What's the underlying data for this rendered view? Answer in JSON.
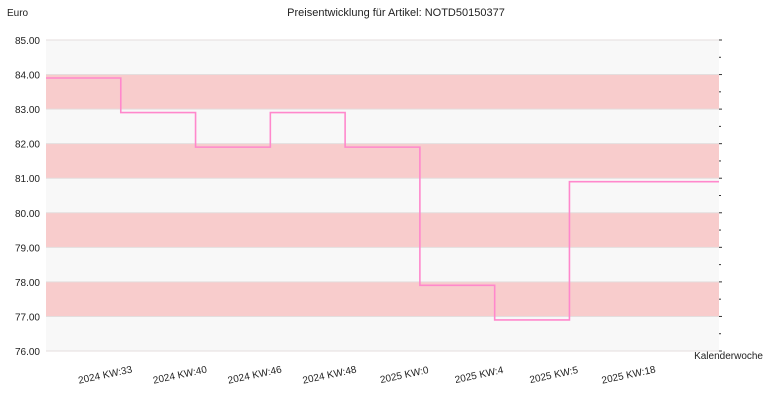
{
  "chart_data": {
    "type": "line",
    "title": "Preisentwicklung für Artikel: NOTD50150377",
    "ylabel": "Euro",
    "xlabel": "Kalenderwoche",
    "ylim": [
      76.0,
      85.0
    ],
    "yticks": [
      "76.00",
      "77.00",
      "78.00",
      "79.00",
      "80.00",
      "81.00",
      "82.00",
      "83.00",
      "84.00",
      "85.00"
    ],
    "categories": [
      "2024 KW:33",
      "2024 KW:40",
      "2024 KW:46",
      "2024 KW:48",
      "2025 KW:0",
      "2025 KW:4",
      "2025 KW:5",
      "2025 KW:18"
    ],
    "step": true,
    "grid": true,
    "series": [
      {
        "values": [
          83.9,
          82.9,
          81.9,
          82.9,
          81.9,
          77.9,
          76.9,
          80.9
        ],
        "color": "#ff88cc"
      }
    ],
    "band_colors": [
      "#f8f8f8",
      "#f8cccc"
    ]
  }
}
